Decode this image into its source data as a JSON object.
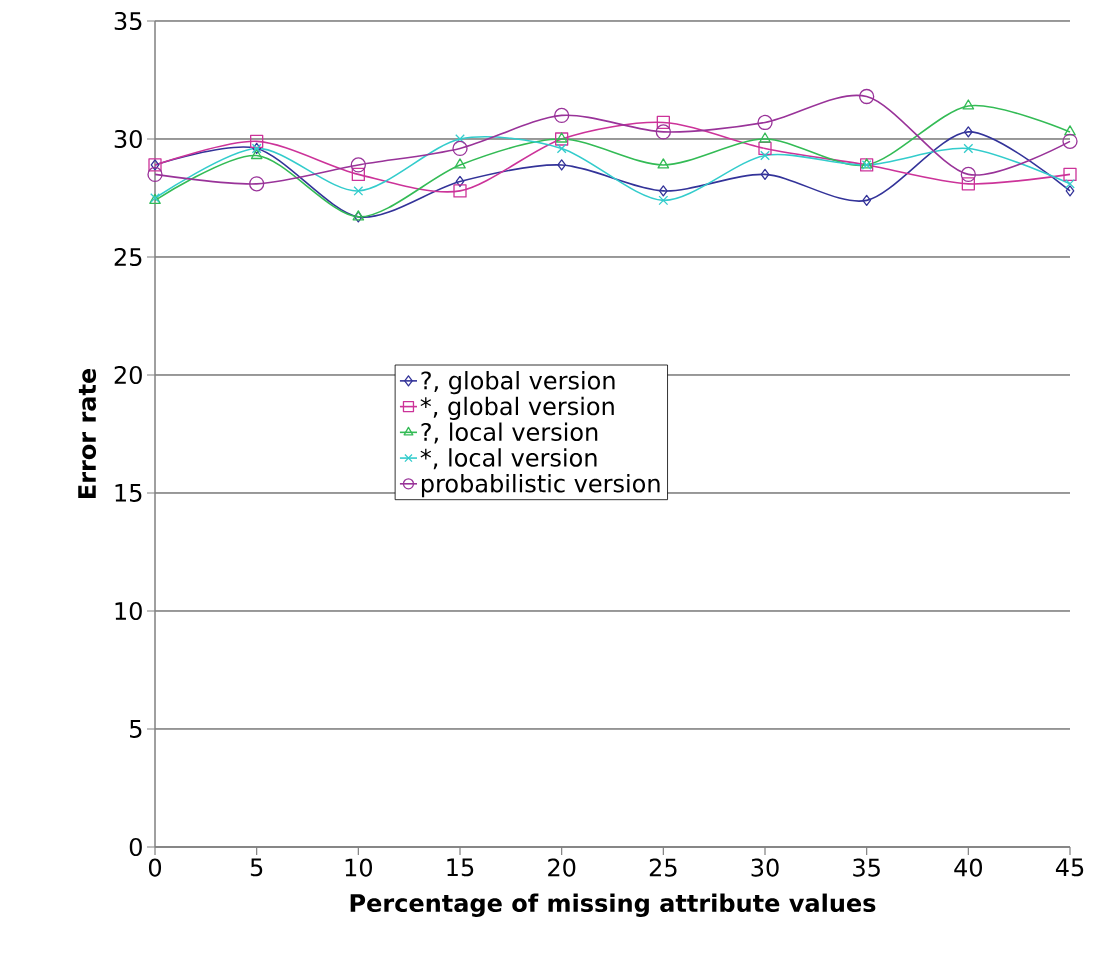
{
  "chart_data": {
    "type": "line",
    "xlabel": "Percentage of missing attribute values",
    "ylabel": "Error rate",
    "x": [
      0,
      5,
      10,
      15,
      20,
      25,
      30,
      35,
      40,
      45
    ],
    "series": [
      {
        "name": "?, global version",
        "color": "#333399",
        "marker": "diamond",
        "values": [
          28.9,
          29.6,
          26.7,
          28.2,
          28.9,
          27.8,
          28.5,
          27.4,
          30.3,
          27.8
        ]
      },
      {
        "name": "*, global version",
        "color": "#cc3399",
        "marker": "square",
        "values": [
          28.9,
          29.9,
          28.5,
          27.8,
          30.0,
          30.7,
          29.6,
          28.9,
          28.1,
          28.5
        ]
      },
      {
        "name": "?, local version",
        "color": "#33bb55",
        "marker": "triangle",
        "values": [
          27.4,
          29.3,
          26.7,
          28.9,
          30.0,
          28.9,
          30.0,
          28.9,
          31.4,
          30.3
        ]
      },
      {
        "name": "*, local version",
        "color": "#33cccc",
        "marker": "cross",
        "values": [
          27.5,
          29.6,
          27.8,
          30.0,
          29.6,
          27.4,
          29.3,
          28.9,
          29.6,
          28.1
        ]
      },
      {
        "name": "probabilistic version",
        "color": "#993399",
        "marker": "circle",
        "values": [
          28.5,
          28.1,
          28.9,
          29.6,
          31.0,
          30.3,
          30.7,
          31.8,
          28.5,
          29.9
        ]
      }
    ],
    "xlim": [
      0,
      45
    ],
    "ylim": [
      0,
      35
    ],
    "xticks": [
      0,
      5,
      10,
      15,
      20,
      25,
      30,
      35,
      40,
      45
    ],
    "yticks": [
      0,
      5,
      10,
      15,
      20,
      25,
      30,
      35
    ],
    "grid": "y",
    "legend": "center"
  }
}
